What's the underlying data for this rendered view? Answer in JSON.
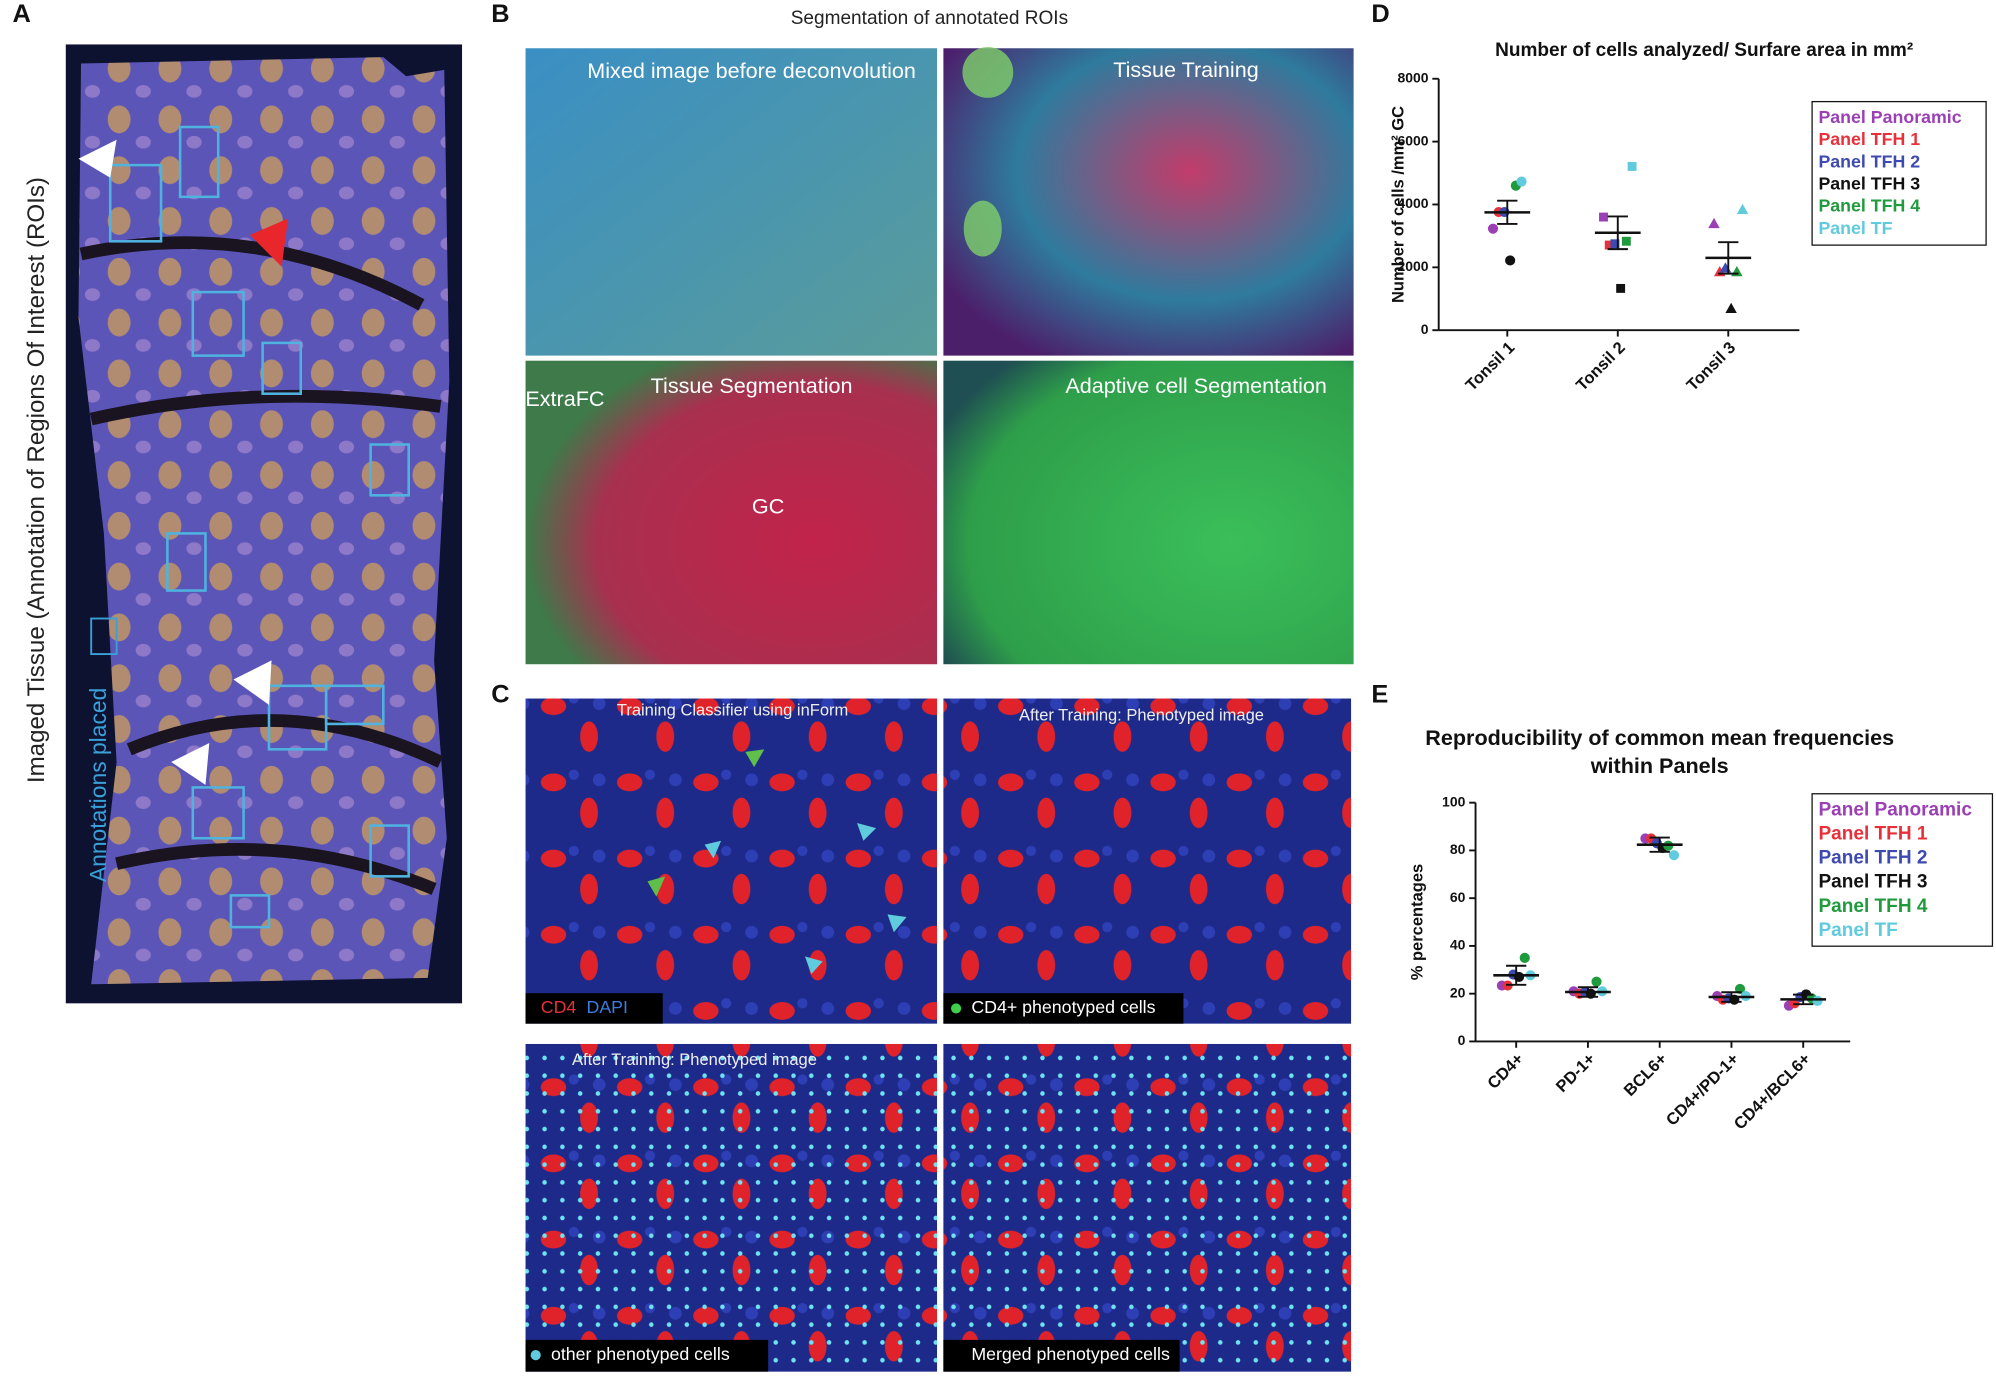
{
  "panel_labels": [
    "A",
    "B",
    "C",
    "D",
    "E"
  ],
  "panel_a": {
    "side_label": "Imaged Tissue (Annotation of Regions Of Interest (ROIs)",
    "legend": "Annotations placed"
  },
  "panel_b": {
    "title": "Segmentation  of annotated ROIs",
    "images": [
      "Mixed image before deconvolution",
      "Tissue Training",
      "Tissue Segmentation",
      "Adaptive cell Segmentation"
    ],
    "extra_labels": [
      "ExtraFC",
      "GC"
    ]
  },
  "panel_c": {
    "titles": [
      "Training Classifier using inForm",
      "After Training: Phenotyped image",
      "After Training:  Phenotyped image"
    ],
    "first_caption": [
      "CD4",
      "DAPI"
    ],
    "captions": [
      "CD4+ phenotyped cells",
      "other phenotyped cells",
      "Merged phenotyped cells"
    ]
  },
  "chart_data": [
    {
      "type": "scatter",
      "title": "Number of cells analyzed/ Surfare area in mm²",
      "y_label": "Number of cells /mm² GC",
      "categories": [
        "Tonsil 1",
        "Tonsil 2",
        "Tonsil 3"
      ],
      "markers": [
        "circle",
        "square",
        "triangle"
      ],
      "ylim": [
        0,
        8000
      ],
      "yticks": [
        0,
        2000,
        4000,
        6000,
        8000
      ],
      "series": [
        {
          "name": "Panel Panoramic",
          "color": "#9b3fb5",
          "values": [
            3230,
            3600,
            3390
          ]
        },
        {
          "name": "Panel TFH 1",
          "color": "#e8303a",
          "values": [
            3760,
            2710,
            1860
          ]
        },
        {
          "name": "Panel TFH 2",
          "color": "#3d4ab0",
          "values": [
            3760,
            2750,
            1980
          ]
        },
        {
          "name": "Panel TFH 3",
          "color": "#111111",
          "values": [
            2220,
            1330,
            690
          ]
        },
        {
          "name": "Panel TFH 4",
          "color": "#1f9a3c",
          "values": [
            4600,
            2830,
            1860
          ]
        },
        {
          "name": "Panel TF",
          "color": "#5fcbdc",
          "values": [
            4730,
            5210,
            3840
          ]
        }
      ],
      "mean_values": [
        3750,
        3100,
        2300
      ],
      "mean_errors": [
        370,
        520,
        500
      ]
    },
    {
      "type": "scatter",
      "title": [
        "Reproducibility of common mean frequencies",
        "within Panels"
      ],
      "y_label": "% percentages",
      "categories": [
        "CD4+",
        "PD-1+",
        "BCL6+",
        "CD4+/PD-1+",
        "CD4+/BCL6+"
      ],
      "ylim": [
        0,
        100
      ],
      "yticks": [
        0,
        20,
        40,
        60,
        80,
        100
      ],
      "series": [
        {
          "name": "Panel Panoramic",
          "color": "#9b3fb5",
          "values": [
            23.4,
            21,
            85,
            19,
            15
          ]
        },
        {
          "name": "Panel TFH 1",
          "color": "#e8303a",
          "values": [
            23.4,
            20,
            85,
            17.5,
            16
          ]
        },
        {
          "name": "Panel TFH 2",
          "color": "#3d4ab0",
          "values": [
            28,
            20.7,
            83,
            18,
            18.6
          ]
        },
        {
          "name": "Panel TFH 3",
          "color": "#111111",
          "values": [
            27,
            20,
            81,
            17.5,
            19.7
          ]
        },
        {
          "name": "Panel TFH 4",
          "color": "#1f9a3c",
          "values": [
            35,
            25,
            82,
            22,
            18
          ]
        },
        {
          "name": "Panel TF",
          "color": "#5fcbdc",
          "values": [
            27.7,
            21,
            78,
            19,
            17
          ]
        }
      ],
      "mean_values": [
        27.7,
        20.7,
        82.4,
        18.6,
        17.6
      ],
      "mean_errors": [
        4,
        2,
        3,
        2,
        2
      ]
    }
  ]
}
